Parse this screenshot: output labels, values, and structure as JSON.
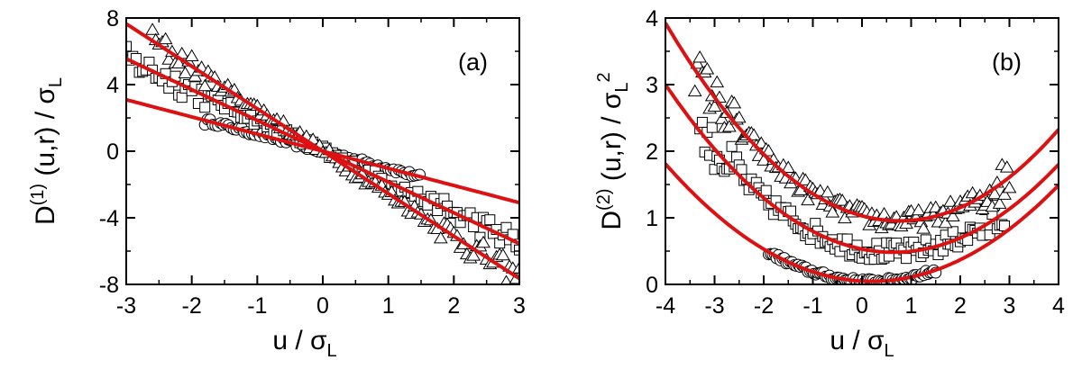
{
  "chart_data": [
    {
      "type": "scatter",
      "panel_label": "(a)",
      "xlabel": {
        "main": "u / σ",
        "sub": "L"
      },
      "ylabel": {
        "main": "D",
        "sup": "(1)",
        "rest": " (u,r) / σ",
        "sub": "L"
      },
      "xlim": [
        -3,
        3
      ],
      "ylim": [
        -8,
        8
      ],
      "x_ticks": [
        "-3",
        "-2",
        "-1",
        "0",
        "1",
        "2",
        "3"
      ],
      "y_ticks": [
        "8",
        "4",
        "0",
        "-4",
        "-8"
      ],
      "grid": false,
      "fit_color": "#dd1111",
      "series": [
        {
          "marker": "circle",
          "x_range": [
            -1.8,
            1.5
          ],
          "fit": {
            "form": "linear",
            "coeffs": [
              0.0,
              -1.03
            ]
          },
          "spread": 0.15,
          "step": 0.04
        },
        {
          "marker": "square",
          "x_range": [
            -3.0,
            3.0
          ],
          "fit": {
            "form": "linear",
            "coeffs": [
              0.0,
              -1.85
            ]
          },
          "spread": 0.35,
          "step": 0.05
        },
        {
          "marker": "triangle",
          "x_range": [
            -2.6,
            3.0
          ],
          "fit": {
            "form": "linear",
            "coeffs": [
              0.0,
              -2.55
            ]
          },
          "spread": 0.35,
          "step": 0.05
        }
      ]
    },
    {
      "type": "scatter",
      "panel_label": "(b)",
      "xlabel": {
        "main": "u / σ",
        "sub": "L"
      },
      "ylabel": {
        "main": "D",
        "sup": "(2)",
        "rest": " (u,r) / σ",
        "sub": "L",
        "sup2": "2"
      },
      "xlim": [
        -4,
        4
      ],
      "ylim": [
        0,
        4
      ],
      "x_ticks": [
        "-4",
        "-3",
        "-2",
        "-1",
        "0",
        "1",
        "2",
        "3",
        "4"
      ],
      "y_ticks": [
        "0",
        "1",
        "2",
        "3",
        "4"
      ],
      "grid": false,
      "fit_color": "#dd1111",
      "series": [
        {
          "marker": "circle",
          "x_range": [
            -1.9,
            1.5
          ],
          "fit": {
            "form": "quadratic",
            "coeffs": [
              0.05,
              -0.04,
              0.1
            ]
          },
          "spread": 0.04,
          "step": 0.04
        },
        {
          "marker": "square",
          "x_range": [
            -3.3,
            2.9
          ],
          "fit": {
            "form": "quadratic",
            "coeffs": [
              0.53,
              -0.15,
              0.117
            ]
          },
          "spread": 0.15,
          "step": 0.05
        },
        {
          "marker": "triangle",
          "x_range": [
            -3.4,
            3.0
          ],
          "fit": {
            "form": "quadratic",
            "coeffs": [
              1.03,
              -0.2,
              0.131
            ]
          },
          "spread": 0.15,
          "step": 0.05
        }
      ]
    }
  ]
}
